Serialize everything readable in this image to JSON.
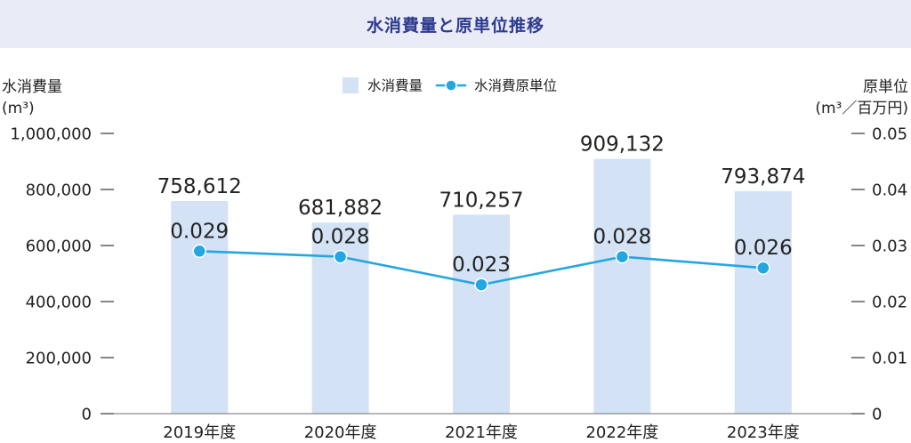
{
  "colors": {
    "header_bg": "#e9ebf6",
    "title": "#2d3a8e"
  },
  "chart_data": {
    "type": "bar",
    "title": "水消費量と原単位推移",
    "categories": [
      "2019年度",
      "2020年度",
      "2021年度",
      "2022年度",
      "2023年度"
    ],
    "series": [
      {
        "name": "水消費量",
        "type": "bar",
        "axis": "left",
        "color": "#d4e2f5",
        "values": [
          758612,
          681882,
          710257,
          909132,
          793874
        ],
        "data_labels": [
          "758,612",
          "681,882",
          "710,257",
          "909,132",
          "793,874"
        ]
      },
      {
        "name": "水消費原単位",
        "type": "line",
        "axis": "right",
        "marker": "circle",
        "color": "#22a7e0",
        "values": [
          0.029,
          0.028,
          0.023,
          0.028,
          0.026
        ],
        "data_labels": [
          "0.029",
          "0.028",
          "0.023",
          "0.028",
          "0.026"
        ]
      }
    ],
    "ylabel": "水消費量",
    "yunit": "(m³)",
    "ylim": [
      0,
      1000000
    ],
    "yticks": [
      0,
      200000,
      400000,
      600000,
      800000,
      1000000
    ],
    "ytick_labels": [
      "0",
      "200,000",
      "400,000",
      "600,000",
      "800,000",
      "1,000,000"
    ],
    "y2label": "原単位",
    "y2unit": "(m³／百万円)",
    "y2lim": [
      0,
      0.05
    ],
    "y2ticks": [
      0,
      0.01,
      0.02,
      0.03,
      0.04,
      0.05
    ],
    "y2tick_labels": [
      "0",
      "0.01",
      "0.02",
      "0.03",
      "0.04",
      "0.05"
    ],
    "grid": false,
    "legend": "top-center"
  }
}
